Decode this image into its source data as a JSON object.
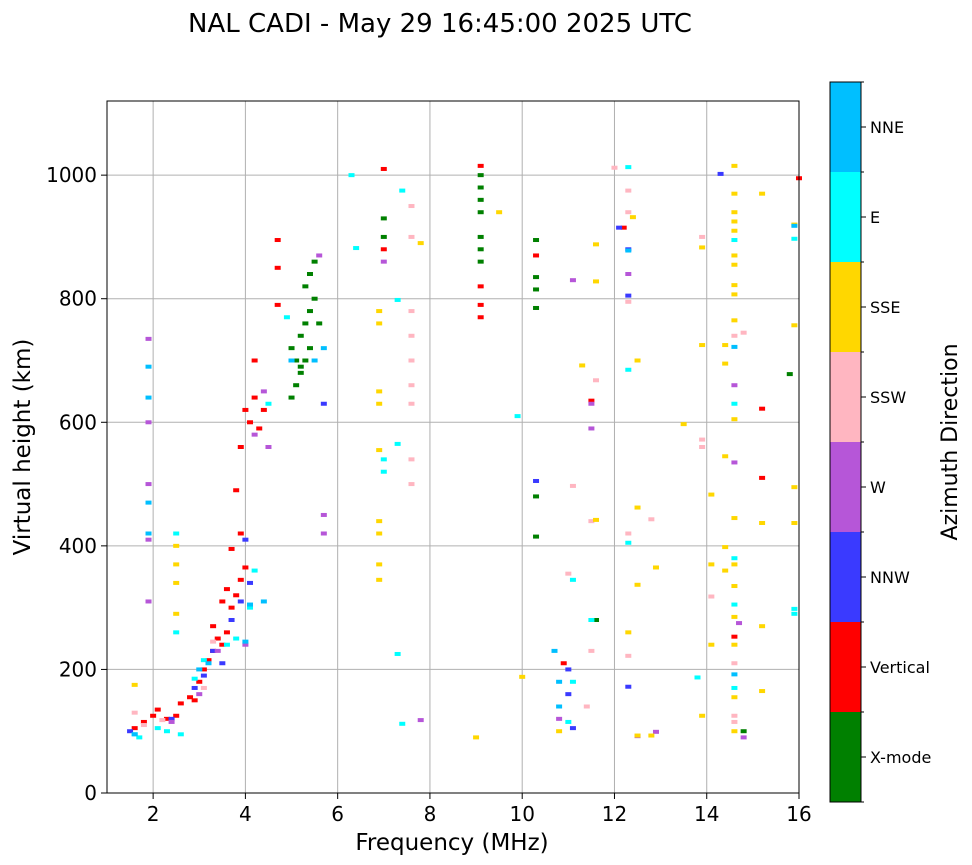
{
  "chart_data": {
    "type": "scatter",
    "title": "NAL CADI - May 29 16:45:00 2025 UTC",
    "xlabel": "Frequency (MHz)",
    "ylabel": "Virtual height (km)",
    "xlim": [
      1,
      16
    ],
    "ylim": [
      0,
      1120
    ],
    "xticks": [
      2,
      4,
      6,
      8,
      10,
      12,
      14,
      16
    ],
    "yticks": [
      0,
      200,
      400,
      600,
      800,
      1000
    ],
    "grid": true,
    "colorbar": {
      "label": "Azimuth Direction",
      "categories": [
        {
          "name": "X-mode",
          "color": "#008000"
        },
        {
          "name": "Vertical",
          "color": "#ff0000"
        },
        {
          "name": "NNW",
          "color": "#3a3aff"
        },
        {
          "name": "W",
          "color": "#b656d8"
        },
        {
          "name": "SSW",
          "color": "#ffb6c1"
        },
        {
          "name": "SSE",
          "color": "#ffd700"
        },
        {
          "name": "E",
          "color": "#00ffff"
        },
        {
          "name": "NNE",
          "color": "#00bfff"
        }
      ]
    },
    "series": [
      {
        "name": "Vertical",
        "points": [
          [
            1.6,
            105
          ],
          [
            1.8,
            115
          ],
          [
            2.0,
            125
          ],
          [
            2.1,
            135
          ],
          [
            2.3,
            120
          ],
          [
            2.5,
            125
          ],
          [
            2.6,
            145
          ],
          [
            2.8,
            155
          ],
          [
            2.9,
            150
          ],
          [
            3.0,
            180
          ],
          [
            3.1,
            200
          ],
          [
            3.2,
            215
          ],
          [
            3.3,
            230
          ],
          [
            3.4,
            250
          ],
          [
            3.5,
            240
          ],
          [
            3.6,
            260
          ],
          [
            3.7,
            300
          ],
          [
            3.8,
            320
          ],
          [
            3.9,
            345
          ],
          [
            4.0,
            365
          ],
          [
            3.7,
            395
          ],
          [
            3.9,
            420
          ],
          [
            3.8,
            490
          ],
          [
            3.9,
            560
          ],
          [
            4.0,
            620
          ],
          [
            4.1,
            600
          ],
          [
            4.2,
            640
          ],
          [
            4.3,
            590
          ],
          [
            4.4,
            620
          ],
          [
            4.2,
            700
          ],
          [
            4.7,
            790
          ],
          [
            4.7,
            850
          ],
          [
            4.7,
            895
          ],
          [
            7.0,
            1010
          ],
          [
            7.0,
            880
          ],
          [
            9.1,
            1015
          ],
          [
            9.1,
            820
          ],
          [
            9.1,
            790
          ],
          [
            9.1,
            770
          ],
          [
            10.3,
            870
          ],
          [
            10.9,
            210
          ],
          [
            11.5,
            635
          ],
          [
            15.2,
            622
          ],
          [
            15.2,
            510
          ],
          [
            16.0,
            995
          ],
          [
            14.6,
            253
          ],
          [
            12.2,
            915
          ],
          [
            3.3,
            270
          ],
          [
            3.5,
            310
          ],
          [
            3.6,
            330
          ]
        ]
      },
      {
        "name": "X-mode",
        "points": [
          [
            5.0,
            640
          ],
          [
            5.1,
            660
          ],
          [
            5.2,
            680
          ],
          [
            5.1,
            700
          ],
          [
            5.0,
            720
          ],
          [
            5.2,
            740
          ],
          [
            5.3,
            760
          ],
          [
            5.4,
            780
          ],
          [
            5.5,
            800
          ],
          [
            5.3,
            820
          ],
          [
            5.4,
            840
          ],
          [
            5.5,
            860
          ],
          [
            5.3,
            700
          ],
          [
            5.4,
            720
          ],
          [
            5.2,
            690
          ],
          [
            5.6,
            760
          ],
          [
            7.0,
            930
          ],
          [
            7.0,
            900
          ],
          [
            9.1,
            1000
          ],
          [
            9.1,
            980
          ],
          [
            9.1,
            960
          ],
          [
            9.1,
            940
          ],
          [
            9.1,
            900
          ],
          [
            9.1,
            880
          ],
          [
            9.1,
            860
          ],
          [
            10.3,
            895
          ],
          [
            10.3,
            835
          ],
          [
            10.3,
            815
          ],
          [
            10.3,
            785
          ],
          [
            10.3,
            480
          ],
          [
            10.3,
            415
          ],
          [
            15.8,
            678
          ],
          [
            11.6,
            280
          ],
          [
            14.8,
            100
          ]
        ]
      },
      {
        "name": "NNW",
        "points": [
          [
            1.5,
            100
          ],
          [
            2.4,
            120
          ],
          [
            2.9,
            170
          ],
          [
            3.1,
            190
          ],
          [
            3.3,
            230
          ],
          [
            3.5,
            210
          ],
          [
            3.7,
            280
          ],
          [
            3.9,
            310
          ],
          [
            4.1,
            340
          ],
          [
            4.0,
            410
          ],
          [
            5.0,
            700
          ],
          [
            5.7,
            630
          ],
          [
            10.3,
            505
          ],
          [
            11.0,
            200
          ],
          [
            11.0,
            160
          ],
          [
            11.1,
            105
          ],
          [
            12.3,
            880
          ],
          [
            12.3,
            805
          ],
          [
            12.3,
            172
          ],
          [
            14.3,
            1002
          ],
          [
            12.1,
            915
          ]
        ]
      },
      {
        "name": "W",
        "points": [
          [
            1.9,
            735
          ],
          [
            1.9,
            600
          ],
          [
            1.9,
            500
          ],
          [
            1.9,
            410
          ],
          [
            1.9,
            310
          ],
          [
            2.4,
            115
          ],
          [
            3.0,
            160
          ],
          [
            3.4,
            230
          ],
          [
            4.0,
            240
          ],
          [
            4.2,
            580
          ],
          [
            4.5,
            560
          ],
          [
            4.4,
            650
          ],
          [
            5.6,
            870
          ],
          [
            5.7,
            450
          ],
          [
            5.7,
            420
          ],
          [
            7.0,
            860
          ],
          [
            7.8,
            118
          ],
          [
            10.8,
            120
          ],
          [
            11.1,
            830
          ],
          [
            11.5,
            630
          ],
          [
            11.5,
            590
          ],
          [
            12.3,
            840
          ],
          [
            12.5,
            92
          ],
          [
            12.9,
            99
          ],
          [
            14.6,
            660
          ],
          [
            14.6,
            535
          ],
          [
            14.8,
            90
          ],
          [
            14.7,
            275
          ]
        ]
      },
      {
        "name": "SSW",
        "points": [
          [
            1.6,
            130
          ],
          [
            1.8,
            110
          ],
          [
            2.2,
            118
          ],
          [
            3.1,
            170
          ],
          [
            3.3,
            245
          ],
          [
            7.6,
            950
          ],
          [
            7.6,
            900
          ],
          [
            7.6,
            780
          ],
          [
            7.6,
            740
          ],
          [
            7.6,
            700
          ],
          [
            7.6,
            660
          ],
          [
            7.6,
            630
          ],
          [
            7.6,
            540
          ],
          [
            7.6,
            500
          ],
          [
            11.0,
            355
          ],
          [
            11.1,
            497
          ],
          [
            11.4,
            140
          ],
          [
            11.5,
            440
          ],
          [
            11.5,
            230
          ],
          [
            11.6,
            668
          ],
          [
            12.3,
            975
          ],
          [
            12.3,
            940
          ],
          [
            12.3,
            795
          ],
          [
            12.3,
            420
          ],
          [
            12.3,
            222
          ],
          [
            13.9,
            900
          ],
          [
            13.9,
            572
          ],
          [
            13.9,
            560
          ],
          [
            14.1,
            318
          ],
          [
            14.6,
            740
          ],
          [
            14.8,
            745
          ],
          [
            14.6,
            210
          ],
          [
            14.6,
            125
          ],
          [
            14.6,
            115
          ],
          [
            12.0,
            1012
          ],
          [
            12.8,
            443
          ]
        ]
      },
      {
        "name": "SSE",
        "points": [
          [
            1.6,
            175
          ],
          [
            2.5,
            400
          ],
          [
            2.5,
            370
          ],
          [
            2.5,
            340
          ],
          [
            2.5,
            290
          ],
          [
            6.9,
            780
          ],
          [
            6.9,
            760
          ],
          [
            6.9,
            650
          ],
          [
            6.9,
            630
          ],
          [
            6.9,
            555
          ],
          [
            6.9,
            440
          ],
          [
            6.9,
            420
          ],
          [
            6.9,
            370
          ],
          [
            6.9,
            345
          ],
          [
            7.8,
            890
          ],
          [
            9.0,
            90
          ],
          [
            9.5,
            940
          ],
          [
            10.0,
            188
          ],
          [
            10.8,
            100
          ],
          [
            11.3,
            692
          ],
          [
            11.6,
            828
          ],
          [
            11.6,
            442
          ],
          [
            11.6,
            888
          ],
          [
            12.4,
            932
          ],
          [
            12.5,
            462
          ],
          [
            12.5,
            337
          ],
          [
            12.5,
            93
          ],
          [
            12.5,
            700
          ],
          [
            12.8,
            93
          ],
          [
            12.9,
            365
          ],
          [
            13.5,
            597
          ],
          [
            13.9,
            883
          ],
          [
            13.9,
            725
          ],
          [
            13.9,
            125
          ],
          [
            14.1,
            483
          ],
          [
            14.1,
            370
          ],
          [
            14.1,
            240
          ],
          [
            14.4,
            725
          ],
          [
            14.4,
            695
          ],
          [
            14.4,
            545
          ],
          [
            14.4,
            398
          ],
          [
            14.4,
            360
          ],
          [
            14.6,
            1015
          ],
          [
            14.6,
            970
          ],
          [
            14.6,
            940
          ],
          [
            14.6,
            925
          ],
          [
            14.6,
            910
          ],
          [
            14.6,
            870
          ],
          [
            14.6,
            855
          ],
          [
            14.6,
            822
          ],
          [
            14.6,
            807
          ],
          [
            14.6,
            765
          ],
          [
            14.6,
            605
          ],
          [
            14.6,
            445
          ],
          [
            14.6,
            370
          ],
          [
            14.6,
            335
          ],
          [
            14.6,
            285
          ],
          [
            14.6,
            240
          ],
          [
            14.6,
            155
          ],
          [
            14.6,
            100
          ],
          [
            15.2,
            970
          ],
          [
            15.2,
            437
          ],
          [
            15.2,
            270
          ],
          [
            15.2,
            165
          ],
          [
            15.9,
            920
          ],
          [
            15.9,
            757
          ],
          [
            15.9,
            495
          ],
          [
            15.9,
            437
          ],
          [
            12.3,
            260
          ]
        ]
      },
      {
        "name": "E",
        "points": [
          [
            1.6,
            95
          ],
          [
            1.7,
            90
          ],
          [
            2.1,
            105
          ],
          [
            2.3,
            100
          ],
          [
            2.5,
            420
          ],
          [
            2.5,
            260
          ],
          [
            2.6,
            95
          ],
          [
            2.9,
            185
          ],
          [
            3.1,
            215
          ],
          [
            3.6,
            240
          ],
          [
            3.8,
            250
          ],
          [
            4.1,
            300
          ],
          [
            4.2,
            360
          ],
          [
            4.5,
            630
          ],
          [
            4.9,
            770
          ],
          [
            7.0,
            520
          ],
          [
            7.0,
            540
          ],
          [
            7.4,
            975
          ],
          [
            7.3,
            565
          ],
          [
            7.3,
            225
          ],
          [
            7.4,
            112
          ],
          [
            6.3,
            1000
          ],
          [
            6.4,
            882
          ],
          [
            7.3,
            798
          ],
          [
            9.9,
            610
          ],
          [
            11.0,
            115
          ],
          [
            11.1,
            180
          ],
          [
            11.1,
            345
          ],
          [
            11.5,
            280
          ],
          [
            12.3,
            1013
          ],
          [
            12.3,
            405
          ],
          [
            12.3,
            685
          ],
          [
            13.8,
            187
          ],
          [
            14.6,
            895
          ],
          [
            14.6,
            630
          ],
          [
            14.6,
            380
          ],
          [
            14.6,
            305
          ],
          [
            14.6,
            170
          ],
          [
            15.9,
            897
          ],
          [
            15.9,
            298
          ],
          [
            15.9,
            290
          ]
        ]
      },
      {
        "name": "NNE",
        "points": [
          [
            1.9,
            690
          ],
          [
            1.9,
            640
          ],
          [
            1.9,
            470
          ],
          [
            1.9,
            420
          ],
          [
            1.6,
            95
          ],
          [
            3.0,
            200
          ],
          [
            3.2,
            210
          ],
          [
            4.0,
            245
          ],
          [
            4.1,
            305
          ],
          [
            4.4,
            310
          ],
          [
            5.0,
            700
          ],
          [
            5.5,
            700
          ],
          [
            5.7,
            720
          ],
          [
            10.7,
            230
          ],
          [
            10.8,
            180
          ],
          [
            10.8,
            140
          ],
          [
            12.3,
            878
          ],
          [
            14.6,
            722
          ],
          [
            14.6,
            192
          ],
          [
            15.9,
            918
          ]
        ]
      }
    ]
  }
}
